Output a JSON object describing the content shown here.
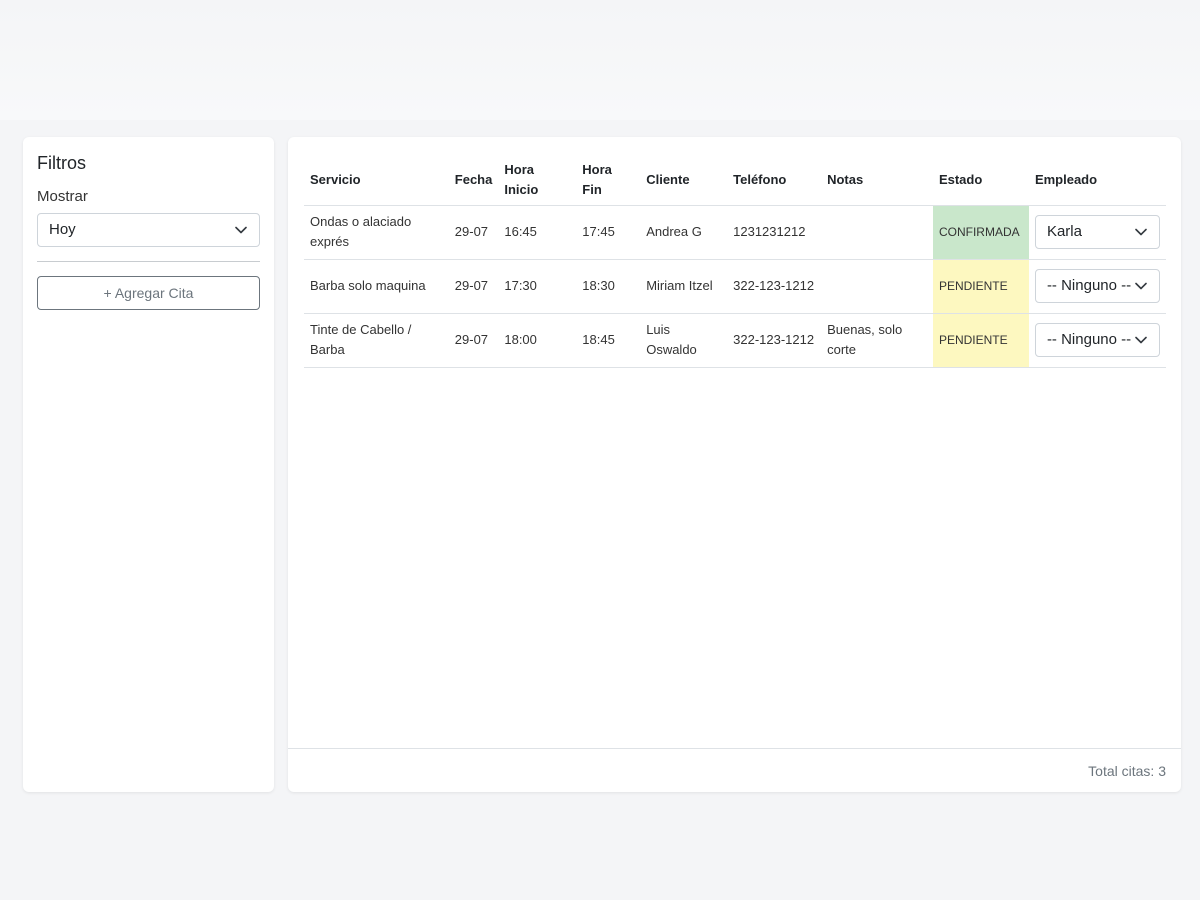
{
  "sidebar": {
    "title": "Filtros",
    "show_label": "Mostrar",
    "show_value": "Hoy",
    "add_button": "+ Agregar Cita"
  },
  "table": {
    "headers": {
      "servicio": "Servicio",
      "fecha": "Fecha",
      "hora_inicio": "Hora Inicio",
      "hora_fin": "Hora Fin",
      "cliente": "Cliente",
      "telefono": "Teléfono",
      "notas": "Notas",
      "estado": "Estado",
      "empleado": "Empleado"
    },
    "rows": [
      {
        "servicio": "Ondas o alaciado exprés",
        "fecha": "29-07",
        "hora_inicio": "16:45",
        "hora_fin": "17:45",
        "cliente": "Andrea G",
        "telefono": "1231231212",
        "notas": "",
        "estado": "CONFIRMADA",
        "empleado": "Karla"
      },
      {
        "servicio": "Barba solo maquina",
        "fecha": "29-07",
        "hora_inicio": "17:30",
        "hora_fin": "18:30",
        "cliente": "Miriam Itzel",
        "telefono": "322-123-1212",
        "notas": "",
        "estado": "PENDIENTE",
        "empleado": "-- Ninguno --"
      },
      {
        "servicio": "Tinte de Cabello / Barba",
        "fecha": "29-07",
        "hora_inicio": "18:00",
        "hora_fin": "18:45",
        "cliente": "Luis Oswaldo",
        "telefono": "322-123-1212",
        "notas": "Buenas, solo corte",
        "estado": "PENDIENTE",
        "empleado": "-- Ninguno --"
      }
    ]
  },
  "footer": {
    "total": "Total citas: 3"
  },
  "colors": {
    "confirmada_bg": "#c9e7cb",
    "pendiente_bg": "#fdf8c0"
  },
  "icons": {
    "select_arrow": "chevron-down-icon"
  }
}
